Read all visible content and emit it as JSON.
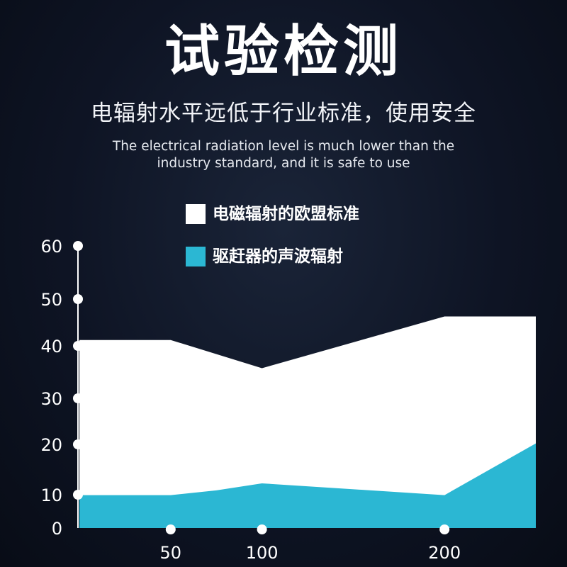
{
  "title": "试验检测",
  "subtitle_cn": "电辐射水平远低于行业标准，使用安全",
  "subtitle_en_line1": "The electrical radiation level is much lower than the",
  "subtitle_en_line2": "industry standard, and it is safe to use",
  "colors": {
    "background": "#0e1424",
    "series_eu": "#ffffff",
    "series_device": "#2bb7d3"
  },
  "chart_data": {
    "type": "area",
    "title": "",
    "xlabel": "",
    "ylabel": "",
    "x_ticks": [
      "50",
      "100",
      "200"
    ],
    "y_ticks": [
      "0",
      "10",
      "20",
      "30",
      "40",
      "50",
      "60"
    ],
    "ylim": [
      0,
      60
    ],
    "legend_position": "top",
    "series": [
      {
        "name": "电磁辐射的欧盟标准",
        "color": "#ffffff",
        "points": [
          {
            "x": 0,
            "y": 40
          },
          {
            "x": 50,
            "y": 40
          },
          {
            "x": 100,
            "y": 34
          },
          {
            "x": 200,
            "y": 45
          },
          {
            "x": 250,
            "y": 45
          }
        ]
      },
      {
        "name": "驱赶器的声波辐射",
        "color": "#2bb7d3",
        "points": [
          {
            "x": 0,
            "y": 7
          },
          {
            "x": 50,
            "y": 7
          },
          {
            "x": 75,
            "y": 8
          },
          {
            "x": 100,
            "y": 9.5
          },
          {
            "x": 200,
            "y": 7
          },
          {
            "x": 250,
            "y": 18
          }
        ]
      }
    ]
  }
}
